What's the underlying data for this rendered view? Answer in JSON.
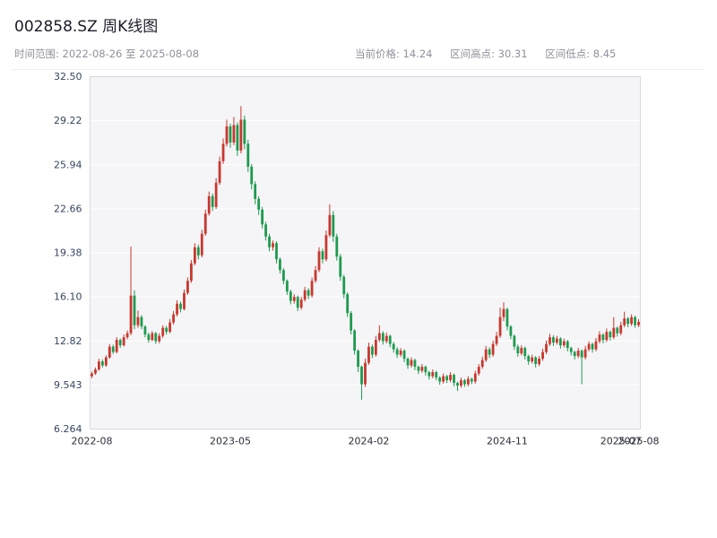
{
  "header": {
    "title": "002858.SZ 周K线图",
    "subtitle": "时间范围: 2022-08-26 至 2025-08-08",
    "info_current": "当前价格: 14.24",
    "info_high": "区间高点: 30.31",
    "info_low": "区间低点: 8.45"
  },
  "chart_data": {
    "type": "candlestick",
    "symbol": "002858.SZ",
    "interval": "weekly",
    "date_start": "2022-08-26",
    "date_end": "2025-08-08",
    "current_price": 14.24,
    "range_high": 30.31,
    "range_low": 8.45,
    "ylim": [
      6.264,
      32.5
    ],
    "y_ticks": [
      32.5,
      29.22,
      25.94,
      22.66,
      19.38,
      16.1,
      12.82,
      9.543,
      6.264
    ],
    "y_tick_labels": [
      "32.50",
      "29.22",
      "25.94",
      "22.66",
      "19.38",
      "16.10",
      "12.82",
      "9.543",
      "6.264"
    ],
    "x_ticks": [
      {
        "index": 0,
        "label": "2022-08"
      },
      {
        "index": 39,
        "label": "2023-05"
      },
      {
        "index": 78,
        "label": "2024-02"
      },
      {
        "index": 117,
        "label": "2024-11"
      },
      {
        "index": 149,
        "label": "2025-07"
      },
      {
        "index": 154,
        "label": "2025-08"
      }
    ],
    "up_color": "#c8372f",
    "down_color": "#1f9a4f",
    "plot_bg": "#f5f5f7",
    "grid_color": "#ffffff",
    "border_color": "#d8d8e0",
    "y_label_color": "#39455e",
    "x_label_color": "#2b2f3a",
    "candles": [
      [
        10.2,
        10.55,
        10.05,
        10.4
      ],
      [
        10.4,
        10.85,
        10.3,
        10.7
      ],
      [
        10.7,
        11.5,
        10.6,
        11.3
      ],
      [
        11.3,
        11.45,
        10.85,
        11.0
      ],
      [
        11.0,
        11.75,
        10.9,
        11.6
      ],
      [
        11.6,
        12.6,
        11.5,
        12.4
      ],
      [
        12.4,
        12.55,
        11.85,
        12.0
      ],
      [
        12.0,
        13.1,
        11.9,
        12.9
      ],
      [
        12.9,
        13.0,
        12.3,
        12.5
      ],
      [
        12.5,
        13.3,
        12.4,
        13.1
      ],
      [
        13.1,
        13.6,
        12.95,
        13.4
      ],
      [
        13.4,
        19.85,
        13.25,
        16.2
      ],
      [
        16.2,
        16.6,
        13.7,
        14.0
      ],
      [
        14.0,
        15.1,
        13.8,
        14.6
      ],
      [
        14.6,
        14.75,
        13.7,
        13.9
      ],
      [
        13.9,
        14.0,
        13.1,
        13.3
      ],
      [
        13.3,
        13.45,
        12.7,
        12.9
      ],
      [
        12.9,
        13.55,
        12.8,
        13.4
      ],
      [
        13.4,
        13.5,
        12.6,
        12.8
      ],
      [
        12.8,
        13.4,
        12.65,
        13.2
      ],
      [
        13.2,
        14.0,
        13.05,
        13.8
      ],
      [
        13.8,
        13.95,
        13.3,
        13.5
      ],
      [
        13.5,
        14.45,
        13.4,
        14.2
      ],
      [
        14.2,
        15.05,
        14.05,
        14.8
      ],
      [
        14.8,
        15.85,
        14.65,
        15.6
      ],
      [
        15.6,
        15.75,
        14.95,
        15.2
      ],
      [
        15.2,
        16.65,
        15.1,
        16.4
      ],
      [
        16.4,
        17.55,
        16.25,
        17.3
      ],
      [
        17.3,
        18.85,
        17.15,
        18.6
      ],
      [
        18.6,
        20.1,
        18.45,
        19.8
      ],
      [
        19.8,
        20.0,
        18.9,
        19.2
      ],
      [
        19.2,
        21.1,
        19.05,
        20.8
      ],
      [
        20.8,
        22.6,
        20.65,
        22.3
      ],
      [
        22.3,
        23.95,
        22.15,
        23.6
      ],
      [
        23.6,
        23.8,
        22.5,
        22.8
      ],
      [
        22.8,
        24.95,
        22.65,
        24.6
      ],
      [
        24.6,
        26.55,
        24.45,
        26.2
      ],
      [
        26.2,
        27.9,
        26.0,
        27.5
      ],
      [
        27.5,
        29.3,
        27.3,
        28.8
      ],
      [
        28.8,
        29.0,
        27.2,
        27.6
      ],
      [
        27.6,
        29.5,
        27.4,
        28.9
      ],
      [
        28.9,
        29.1,
        26.6,
        27.0
      ],
      [
        27.0,
        30.31,
        26.8,
        29.3
      ],
      [
        29.3,
        29.6,
        27.1,
        27.5
      ],
      [
        27.5,
        27.8,
        25.4,
        25.8
      ],
      [
        25.8,
        26.0,
        24.1,
        24.5
      ],
      [
        24.5,
        24.7,
        23.0,
        23.4
      ],
      [
        23.4,
        23.6,
        22.2,
        22.6
      ],
      [
        22.6,
        22.8,
        21.2,
        21.5
      ],
      [
        21.5,
        21.7,
        20.3,
        20.6
      ],
      [
        20.6,
        20.8,
        19.5,
        19.8
      ],
      [
        19.8,
        20.3,
        19.55,
        20.1
      ],
      [
        20.1,
        20.25,
        18.6,
        18.9
      ],
      [
        18.9,
        19.05,
        17.85,
        18.1
      ],
      [
        18.1,
        18.25,
        17.05,
        17.3
      ],
      [
        17.3,
        17.4,
        16.25,
        16.5
      ],
      [
        16.5,
        16.65,
        15.55,
        15.8
      ],
      [
        15.8,
        16.3,
        15.6,
        16.1
      ],
      [
        16.1,
        16.2,
        15.05,
        15.3
      ],
      [
        15.3,
        16.1,
        15.15,
        15.9
      ],
      [
        15.9,
        16.85,
        15.75,
        16.6
      ],
      [
        16.6,
        16.75,
        15.95,
        16.2
      ],
      [
        16.2,
        17.55,
        16.05,
        17.3
      ],
      [
        17.3,
        18.4,
        17.15,
        18.1
      ],
      [
        18.1,
        19.8,
        17.95,
        19.5
      ],
      [
        19.5,
        19.7,
        18.6,
        18.9
      ],
      [
        18.9,
        21.05,
        18.75,
        20.7
      ],
      [
        20.7,
        23.0,
        20.55,
        22.2
      ],
      [
        22.2,
        22.5,
        20.2,
        20.6
      ],
      [
        20.6,
        20.8,
        18.8,
        19.1
      ],
      [
        19.1,
        19.3,
        17.3,
        17.6
      ],
      [
        17.6,
        17.75,
        16.0,
        16.3
      ],
      [
        16.3,
        16.45,
        14.6,
        14.9
      ],
      [
        14.9,
        15.05,
        13.3,
        13.6
      ],
      [
        13.6,
        13.7,
        11.8,
        12.1
      ],
      [
        12.1,
        12.2,
        10.5,
        10.9
      ],
      [
        10.9,
        11.0,
        8.45,
        9.6
      ],
      [
        9.6,
        11.5,
        9.4,
        11.2
      ],
      [
        11.2,
        12.7,
        11.05,
        12.4
      ],
      [
        12.4,
        12.55,
        11.55,
        11.8
      ],
      [
        11.8,
        13.2,
        11.65,
        12.9
      ],
      [
        12.9,
        14.0,
        12.75,
        13.4
      ],
      [
        13.4,
        13.55,
        12.55,
        12.8
      ],
      [
        12.8,
        13.45,
        12.65,
        13.2
      ],
      [
        13.2,
        13.3,
        12.35,
        12.6
      ],
      [
        12.6,
        12.75,
        11.95,
        12.2
      ],
      [
        12.2,
        12.35,
        11.55,
        11.8
      ],
      [
        11.8,
        12.3,
        11.65,
        12.1
      ],
      [
        12.1,
        12.2,
        11.25,
        11.5
      ],
      [
        11.5,
        11.6,
        10.75,
        11.0
      ],
      [
        11.0,
        11.6,
        10.85,
        11.4
      ],
      [
        11.4,
        11.5,
        10.65,
        10.9
      ],
      [
        10.9,
        11.0,
        10.35,
        10.6
      ],
      [
        10.6,
        11.1,
        10.45,
        10.9
      ],
      [
        10.9,
        11.0,
        10.25,
        10.5
      ],
      [
        10.5,
        10.6,
        9.95,
        10.2
      ],
      [
        10.2,
        10.7,
        10.05,
        10.5
      ],
      [
        10.5,
        10.6,
        9.9,
        10.1
      ],
      [
        10.1,
        10.2,
        9.55,
        9.8
      ],
      [
        9.8,
        10.4,
        9.65,
        10.2
      ],
      [
        10.2,
        10.3,
        9.7,
        9.9
      ],
      [
        9.9,
        10.5,
        9.75,
        10.3
      ],
      [
        10.3,
        10.4,
        9.45,
        9.7
      ],
      [
        9.7,
        9.8,
        9.1,
        9.5
      ],
      [
        9.5,
        10.1,
        9.35,
        9.9
      ],
      [
        9.9,
        10.0,
        9.4,
        9.6
      ],
      [
        9.6,
        10.2,
        9.45,
        10.0
      ],
      [
        10.0,
        10.1,
        9.6,
        9.8
      ],
      [
        9.8,
        10.6,
        9.65,
        10.4
      ],
      [
        10.4,
        11.1,
        10.25,
        10.9
      ],
      [
        10.9,
        11.65,
        10.75,
        11.4
      ],
      [
        11.4,
        12.45,
        11.25,
        12.2
      ],
      [
        12.2,
        12.35,
        11.55,
        11.8
      ],
      [
        11.8,
        12.85,
        11.65,
        12.6
      ],
      [
        12.6,
        13.5,
        12.45,
        13.2
      ],
      [
        13.2,
        15.3,
        13.05,
        14.6
      ],
      [
        14.6,
        15.7,
        14.3,
        15.2
      ],
      [
        15.2,
        15.3,
        13.6,
        13.9
      ],
      [
        13.9,
        14.0,
        12.95,
        13.2
      ],
      [
        13.2,
        13.3,
        12.15,
        12.4
      ],
      [
        12.4,
        12.55,
        11.65,
        11.9
      ],
      [
        11.9,
        12.5,
        11.75,
        12.3
      ],
      [
        12.3,
        12.4,
        11.45,
        11.7
      ],
      [
        11.7,
        11.8,
        11.05,
        11.3
      ],
      [
        11.3,
        11.8,
        11.15,
        11.6
      ],
      [
        11.6,
        11.7,
        10.85,
        11.1
      ],
      [
        11.1,
        11.7,
        10.95,
        11.5
      ],
      [
        11.5,
        12.25,
        11.35,
        12.0
      ],
      [
        12.0,
        12.85,
        11.85,
        12.6
      ],
      [
        12.6,
        13.35,
        12.45,
        13.1
      ],
      [
        13.1,
        13.25,
        12.45,
        12.7
      ],
      [
        12.7,
        13.2,
        12.55,
        13.0
      ],
      [
        13.0,
        13.1,
        12.25,
        12.5
      ],
      [
        12.5,
        13.0,
        12.35,
        12.8
      ],
      [
        12.8,
        12.9,
        12.05,
        12.3
      ],
      [
        12.3,
        12.4,
        11.75,
        12.0
      ],
      [
        12.0,
        12.1,
        11.45,
        11.7
      ],
      [
        11.7,
        12.3,
        11.55,
        12.1
      ],
      [
        12.1,
        12.2,
        9.6,
        11.6
      ],
      [
        11.6,
        12.45,
        11.45,
        12.2
      ],
      [
        12.2,
        12.8,
        12.05,
        12.6
      ],
      [
        12.6,
        12.7,
        11.95,
        12.2
      ],
      [
        12.2,
        13.05,
        12.05,
        12.8
      ],
      [
        12.8,
        13.55,
        12.65,
        13.3
      ],
      [
        13.3,
        13.4,
        12.65,
        12.9
      ],
      [
        12.9,
        13.75,
        12.75,
        13.5
      ],
      [
        13.5,
        13.6,
        12.85,
        13.1
      ],
      [
        13.1,
        14.6,
        12.95,
        13.8
      ],
      [
        13.8,
        13.9,
        13.15,
        13.4
      ],
      [
        13.4,
        14.25,
        13.25,
        14.0
      ],
      [
        14.0,
        15.0,
        13.85,
        14.5
      ],
      [
        14.5,
        14.6,
        13.85,
        14.1
      ],
      [
        14.1,
        14.8,
        13.95,
        14.6
      ],
      [
        14.6,
        14.7,
        13.8,
        14.0
      ],
      [
        14.0,
        14.45,
        13.85,
        14.24
      ]
    ]
  }
}
